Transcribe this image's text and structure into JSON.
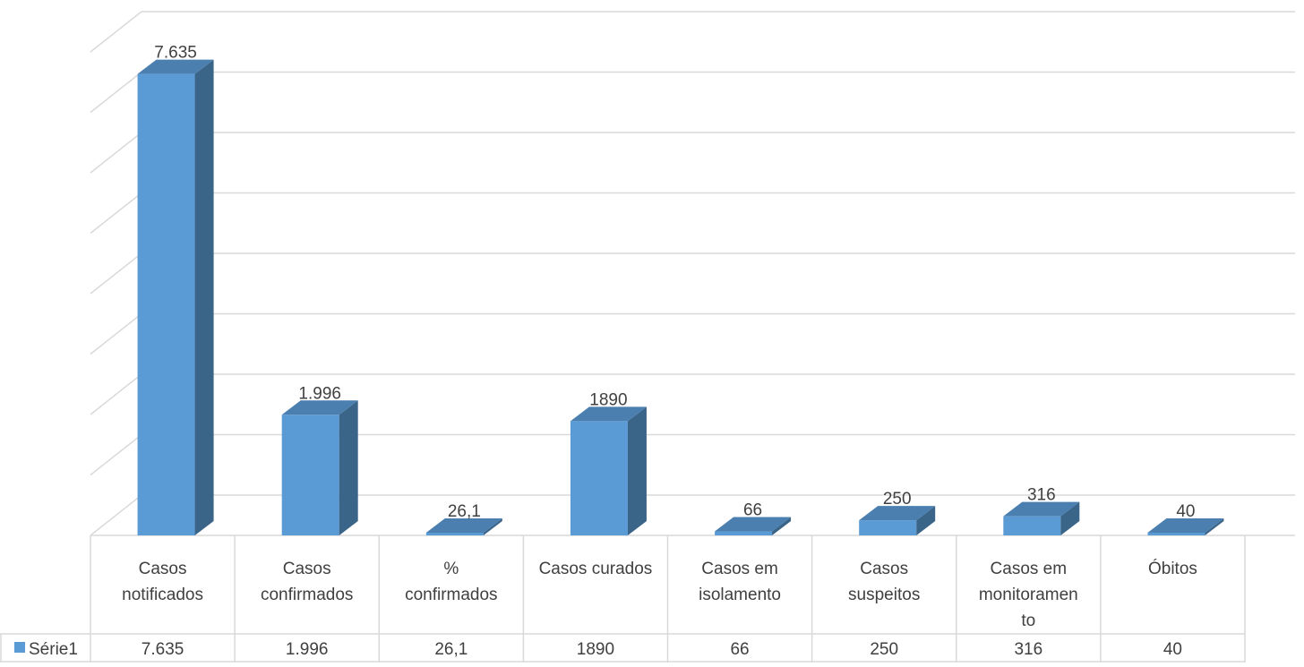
{
  "chart_data": {
    "type": "bar",
    "style": "3d-column-with-data-table",
    "categories": [
      [
        "Casos",
        "notificados"
      ],
      [
        "Casos",
        "confirmados"
      ],
      [
        "%",
        "confirmados"
      ],
      [
        "Casos curados"
      ],
      [
        "Casos em",
        "isolamento"
      ],
      [
        "Casos",
        "suspeitos"
      ],
      [
        "Casos em",
        "monitoramen",
        "to"
      ],
      [
        "Óbitos"
      ]
    ],
    "series": [
      {
        "name": "Série1",
        "values": [
          7635,
          1996,
          26.1,
          1890,
          66,
          250,
          316,
          40
        ],
        "labels": [
          "7.635",
          "1.996",
          "26,1",
          "1890",
          "66",
          "250",
          "316",
          "40"
        ]
      }
    ],
    "ylim": [
      0,
      8000
    ],
    "grid": true,
    "legend": "data-table-left",
    "colors": {
      "front": "#5b9bd5",
      "top": "#4a7fb0",
      "side": "#3b6489",
      "grid": "#d9d9d9",
      "text": "#404040"
    }
  }
}
